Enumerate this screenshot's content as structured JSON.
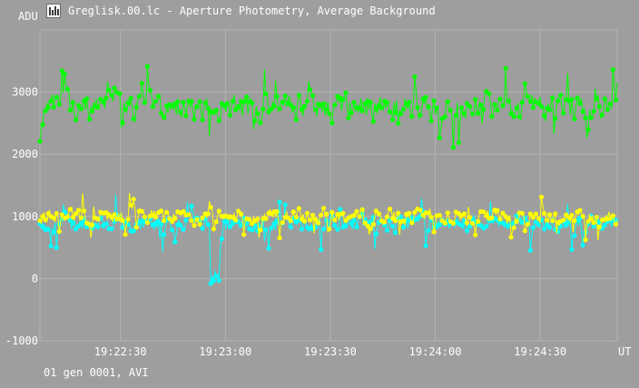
{
  "window": {
    "title": "Greglisk.00.lc - Aperture Photometry, Average Background",
    "icon": "chart-app-icon"
  },
  "footer": {
    "text": "01 gen 0001, AVI"
  },
  "colors": {
    "background": "#9e9e9e",
    "grid": "#b4b4b4",
    "text": "#ffffff",
    "series_green": "#00ff00",
    "series_cyan": "#00ffff",
    "series_yellow": "#ffff00"
  },
  "chart_data": {
    "type": "line",
    "ylabel": "ADU",
    "xlabel": "UT",
    "ylim": [
      -1000,
      4000
    ],
    "y_ticks": [
      -1000,
      0,
      1000,
      2000,
      3000
    ],
    "x_range": [
      "19:22:07",
      "19:24:52"
    ],
    "x_ticks": [
      "19:22:30",
      "19:23:00",
      "19:23:30",
      "19:24:00",
      "19:24:30"
    ],
    "grid": true,
    "point_count": 420,
    "series": [
      {
        "color": "#00ff00",
        "base": 2750,
        "jitter": 300,
        "spike": 450
      },
      {
        "color": "#00ffff",
        "base": 880,
        "jitter": 180,
        "spike": 350
      },
      {
        "color": "#ffff00",
        "base": 1000,
        "jitter": 170,
        "spike": 300
      }
    ]
  }
}
